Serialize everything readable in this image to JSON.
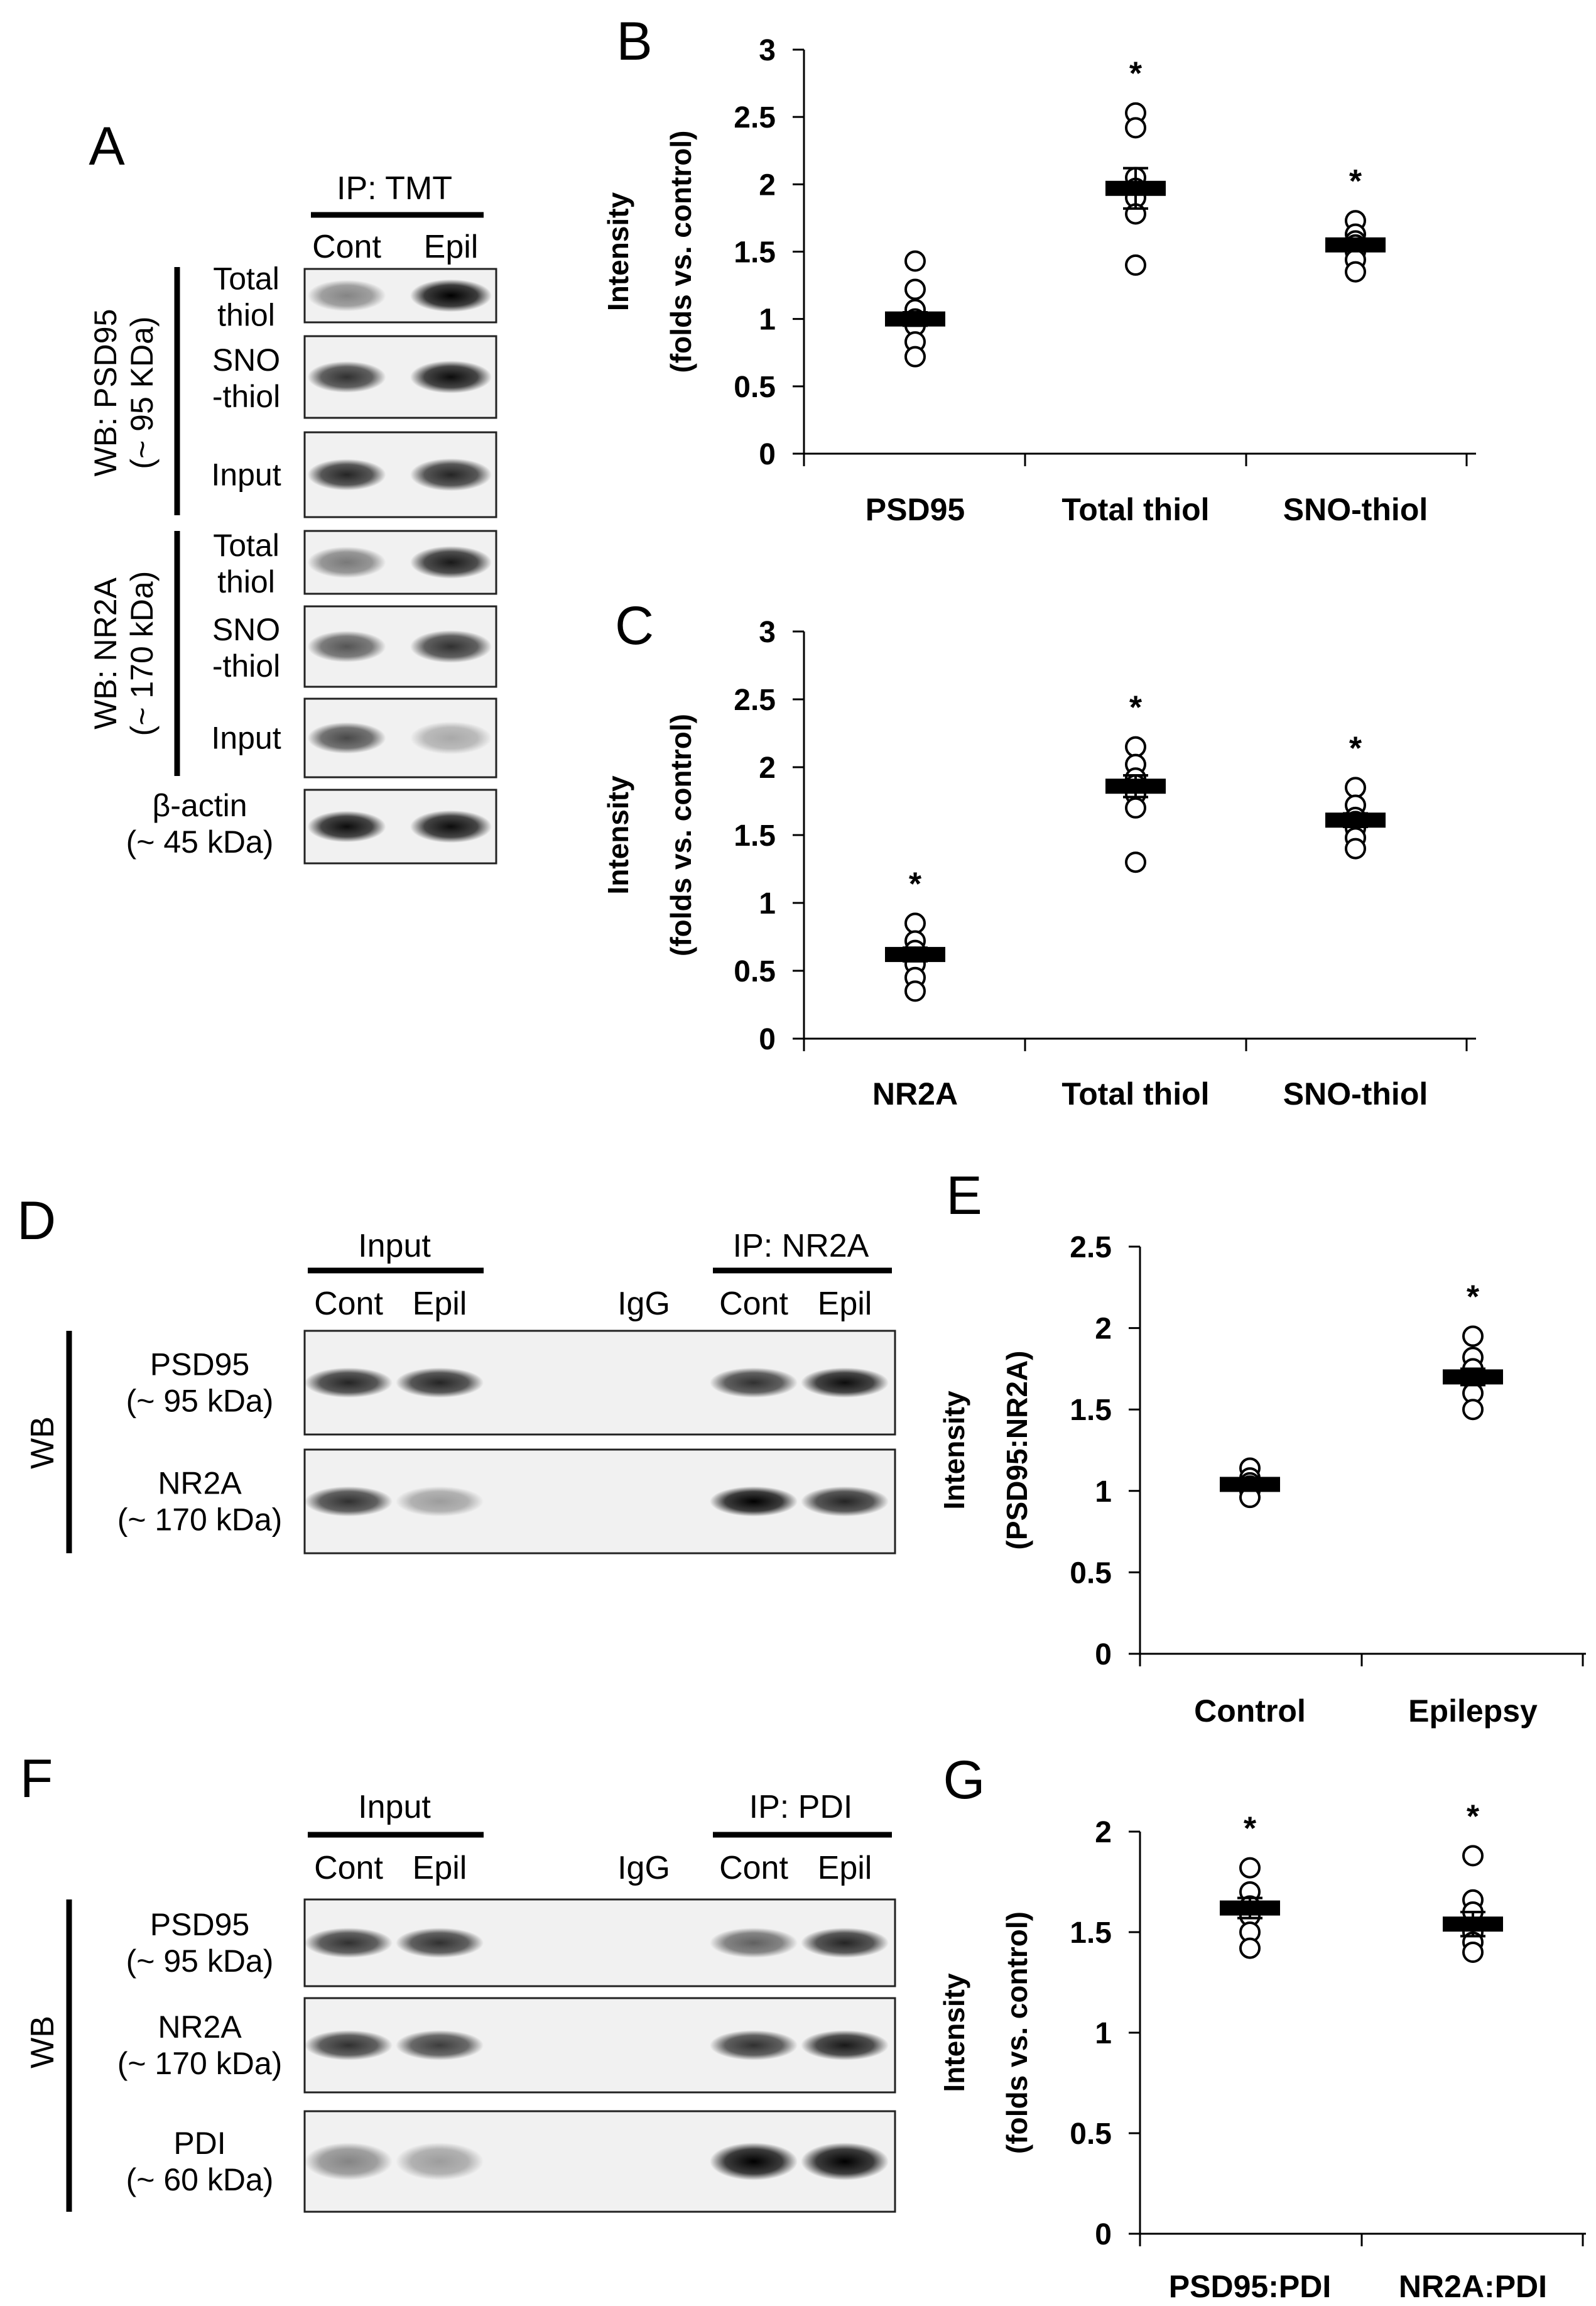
{
  "panels": {
    "A": {
      "letter": "A",
      "ip_label": "IP: TMT",
      "lanes": [
        "Cont",
        "Epil"
      ],
      "groups": [
        {
          "label": "WB: PSD95 (~ 95 KDa)",
          "line1": "WB: PSD95",
          "line2": "(~ 95 KDa)"
        },
        {
          "label": "WB: NR2A (~ 170 kDa)",
          "line1": "WB: NR2A",
          "line2": "(~ 170 kDa)"
        }
      ],
      "rows": [
        {
          "line1": "Total",
          "line2": "thiol",
          "bands": [
            0.45,
            1.0
          ]
        },
        {
          "line1": "SNO",
          "line2": "-thiol",
          "bands": [
            0.8,
            0.95
          ]
        },
        {
          "line1": "Input",
          "line2": "",
          "bands": [
            0.85,
            0.85
          ]
        },
        {
          "line1": "Total",
          "line2": "thiol",
          "bands": [
            0.5,
            0.9
          ]
        },
        {
          "line1": "SNO",
          "line2": "-thiol",
          "bands": [
            0.65,
            0.8
          ]
        },
        {
          "line1": "Input",
          "line2": "",
          "bands": [
            0.7,
            0.3
          ]
        },
        {
          "line1": "β-actin",
          "line2": "(~ 45 kDa)",
          "bands": [
            0.95,
            0.95
          ]
        }
      ]
    },
    "D": {
      "letter": "D",
      "input_label": "Input",
      "ip_label": "IP: NR2A",
      "lanes": [
        "Cont",
        "Epil",
        "IgG",
        "Cont",
        "Epil"
      ],
      "wb_label": "WB",
      "rows": [
        {
          "line1": "PSD95",
          "line2": "(~ 95 kDa)",
          "bands": [
            0.85,
            0.85,
            0,
            0.8,
            0.95
          ]
        },
        {
          "line1": "NR2A",
          "line2": "(~ 170 kDa)",
          "bands": [
            0.8,
            0.35,
            0,
            1.0,
            0.85
          ]
        }
      ]
    },
    "F": {
      "letter": "F",
      "input_label": "Input",
      "ip_label": "IP: PDI",
      "lanes": [
        "Cont",
        "Epil",
        "IgG",
        "Cont",
        "Epil"
      ],
      "wb_label": "WB",
      "rows": [
        {
          "line1": "PSD95",
          "line2": "(~ 95 kDa)",
          "bands": [
            0.8,
            0.8,
            0,
            0.6,
            0.85
          ]
        },
        {
          "line1": "NR2A",
          "line2": "(~ 170 kDa)",
          "bands": [
            0.8,
            0.75,
            0,
            0.8,
            0.9
          ]
        },
        {
          "line1": "PDI",
          "line2": "(~ 60 kDa)",
          "bands": [
            0.45,
            0.35,
            0,
            1.0,
            1.0
          ]
        }
      ]
    }
  },
  "chart_data": [
    {
      "panel": "B",
      "type": "scatter",
      "ylabel_line1": "Intensity",
      "ylabel_line2": "(folds vs. control)",
      "ylim": [
        0,
        3
      ],
      "yticks": [
        0,
        0.5,
        1,
        1.5,
        2,
        2.5,
        3
      ],
      "ytick_labels": [
        "0",
        "0.5",
        "1",
        "1.5",
        "2",
        "2.5",
        "3"
      ],
      "categories": [
        "PSD95",
        "Total thiol",
        "SNO-thiol"
      ],
      "means": [
        1.0,
        1.97,
        1.55
      ],
      "errors": [
        0.05,
        0.15,
        0.04
      ],
      "significance": [
        "",
        "*",
        "*"
      ],
      "points": [
        [
          1.43,
          1.22,
          1.07,
          1.0,
          0.95,
          0.83,
          0.72
        ],
        [
          2.53,
          2.42,
          2.05,
          1.97,
          1.9,
          1.78,
          1.4
        ],
        [
          1.73,
          1.63,
          1.58,
          1.55,
          1.5,
          1.44,
          1.35
        ]
      ]
    },
    {
      "panel": "C",
      "type": "scatter",
      "ylabel_line1": "Intensity",
      "ylabel_line2": "(folds vs. control)",
      "ylim": [
        0,
        3
      ],
      "yticks": [
        0,
        0.5,
        1,
        1.5,
        2,
        2.5,
        3
      ],
      "ytick_labels": [
        "0",
        "0.5",
        "1",
        "1.5",
        "2",
        "2.5",
        "3"
      ],
      "categories": [
        "NR2A",
        "Total thiol",
        "SNO-thiol"
      ],
      "means": [
        0.62,
        1.86,
        1.61
      ],
      "errors": [
        0.05,
        0.08,
        0.05
      ],
      "significance": [
        "*",
        "*",
        "*"
      ],
      "points": [
        [
          0.85,
          0.72,
          0.65,
          0.6,
          0.55,
          0.45,
          0.35
        ],
        [
          2.15,
          2.02,
          1.92,
          1.87,
          1.8,
          1.7,
          1.3
        ],
        [
          1.85,
          1.72,
          1.63,
          1.6,
          1.55,
          1.48,
          1.4
        ]
      ]
    },
    {
      "panel": "E",
      "type": "scatter",
      "ylabel_line1": "Intensity",
      "ylabel_line2": "(PSD95:NR2A)",
      "ylim": [
        0,
        2.5
      ],
      "yticks": [
        0,
        0.5,
        1,
        1.5,
        2,
        2.5
      ],
      "ytick_labels": [
        "0",
        "0.5",
        "1",
        "1.5",
        "2",
        "2.5"
      ],
      "categories": [
        "Control",
        "Epilepsy"
      ],
      "means": [
        1.04,
        1.7
      ],
      "errors": [
        0.02,
        0.05
      ],
      "significance": [
        "",
        "*"
      ],
      "points": [
        [
          1.14,
          1.08,
          1.05,
          1.03,
          1.0,
          0.96
        ],
        [
          1.95,
          1.82,
          1.75,
          1.68,
          1.6,
          1.5
        ]
      ]
    },
    {
      "panel": "G",
      "type": "scatter",
      "ylabel_line1": "Intensity",
      "ylabel_line2": "(folds vs. control)",
      "ylim": [
        0,
        2
      ],
      "yticks": [
        0,
        0.5,
        1,
        1.5,
        2
      ],
      "ytick_labels": [
        "0",
        "0.5",
        "1",
        "1.5",
        "2"
      ],
      "categories": [
        "PSD95:PDI",
        "NR2A:PDI"
      ],
      "means": [
        1.62,
        1.54
      ],
      "errors": [
        0.05,
        0.06
      ],
      "significance": [
        "*",
        "*"
      ],
      "points": [
        [
          1.82,
          1.7,
          1.63,
          1.58,
          1.5,
          1.42
        ],
        [
          1.88,
          1.66,
          1.6,
          1.5,
          1.45,
          1.4
        ]
      ]
    }
  ]
}
